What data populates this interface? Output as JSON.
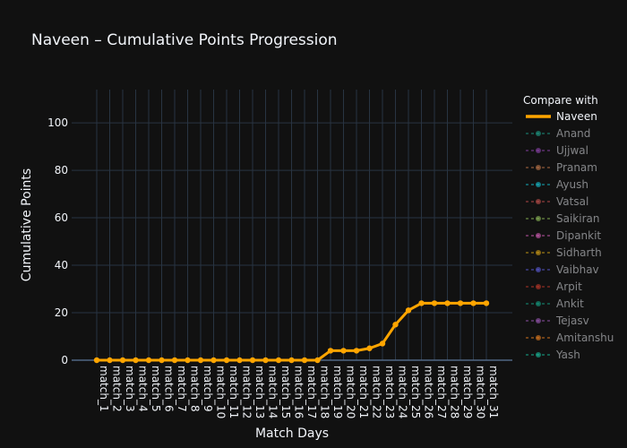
{
  "chart_data": {
    "type": "line",
    "title": "Naveen – Cumulative Points Progression",
    "xlabel": "Match Days",
    "ylabel": "Cumulative Points",
    "ylim": [
      0,
      114
    ],
    "yticks": [
      0,
      20,
      40,
      60,
      80,
      100
    ],
    "grid": true,
    "legend_position": "right",
    "legend_title": "Compare with",
    "categories": [
      "match_1",
      "match_2",
      "match_3",
      "match_4",
      "match_5",
      "match_6",
      "match_7",
      "match_8",
      "match_9",
      "match_10",
      "match_11",
      "match_12",
      "match_13",
      "match_14",
      "match_15",
      "match_16",
      "match_17",
      "match_18",
      "match_19",
      "match_20",
      "match_21",
      "match_22",
      "match_23",
      "match_24",
      "match_25",
      "match_26",
      "match_27",
      "match_28",
      "match_29",
      "match_30",
      "match_31"
    ],
    "series": [
      {
        "name": "Naveen",
        "color": "#FFA500",
        "visible": true,
        "values": [
          0,
          0,
          0,
          0,
          0,
          0,
          0,
          0,
          0,
          0,
          0,
          0,
          0,
          0,
          0,
          0,
          0,
          0,
          4,
          4,
          4,
          5,
          7,
          15,
          21,
          24,
          24,
          24,
          24,
          24,
          24
        ]
      },
      {
        "name": "Anand",
        "color": "#1f9e89",
        "visible": false
      },
      {
        "name": "Ujjwal",
        "color": "#8e44ad",
        "visible": false
      },
      {
        "name": "Pranam",
        "color": "#c0784b",
        "visible": false
      },
      {
        "name": "Ayush",
        "color": "#17becf",
        "visible": false
      },
      {
        "name": "Vatsal",
        "color": "#c0504d",
        "visible": false
      },
      {
        "name": "Saikiran",
        "color": "#8fbc5a",
        "visible": false
      },
      {
        "name": "Dipankit",
        "color": "#d35fb7",
        "visible": false
      },
      {
        "name": "Sidharth",
        "color": "#d4a017",
        "visible": false
      },
      {
        "name": "Vaibhav",
        "color": "#5b5bd6",
        "visible": false
      },
      {
        "name": "Arpit",
        "color": "#c0392b",
        "visible": false
      },
      {
        "name": "Ankit",
        "color": "#16a085",
        "visible": false
      },
      {
        "name": "Tejasv",
        "color": "#9b59b6",
        "visible": false
      },
      {
        "name": "Amitanshu",
        "color": "#e67e22",
        "visible": false
      },
      {
        "name": "Yash",
        "color": "#1abc9c",
        "visible": false
      }
    ]
  }
}
